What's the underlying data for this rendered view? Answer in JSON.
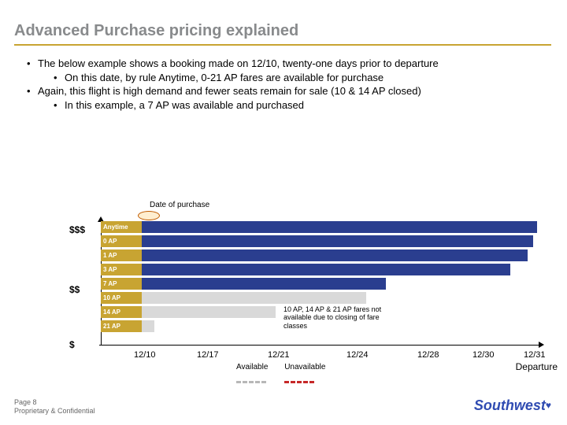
{
  "title": "Advanced Purchase pricing explained",
  "bullets": {
    "b1": "The below example shows a booking made on 12/10, twenty-one days prior to departure",
    "b2": "On this date, by rule Anytime, 0-21 AP fares are available for purchase",
    "b3": "Again, this flight is high demand and fewer seats remain for sale (10 & 14 AP closed)",
    "b4": "In this example, a 7 AP was available and purchased"
  },
  "chart": {
    "purchase_label": "Date of purchase",
    "y_labels": {
      "high": "$$$",
      "mid": "$$",
      "low": "$"
    },
    "rows": [
      {
        "label": "Anytime",
        "avail_start": 52,
        "avail_width": 502,
        "unavail_start": 0,
        "unavail_width": 0
      },
      {
        "label": "0 AP",
        "avail_start": 52,
        "avail_width": 497,
        "unavail_start": 0,
        "unavail_width": 0
      },
      {
        "label": "1 AP",
        "avail_start": 52,
        "avail_width": 490,
        "unavail_start": 0,
        "unavail_width": 0
      },
      {
        "label": "3 AP",
        "avail_start": 52,
        "avail_width": 468,
        "unavail_start": 0,
        "unavail_width": 0
      },
      {
        "label": "7 AP",
        "avail_start": 52,
        "avail_width": 310,
        "unavail_start": 0,
        "unavail_width": 0
      },
      {
        "label": "10 AP",
        "avail_start": 0,
        "avail_width": 0,
        "unavail_start": 52,
        "unavail_width": 285
      },
      {
        "label": "14 AP",
        "avail_start": 0,
        "avail_width": 0,
        "unavail_start": 52,
        "unavail_width": 170
      },
      {
        "label": "21 AP",
        "avail_start": 0,
        "avail_width": 0,
        "unavail_start": 52,
        "unavail_width": 16
      }
    ],
    "x_ticks": [
      {
        "label": "12/10",
        "pos": 100
      },
      {
        "label": "12/17",
        "pos": 180
      },
      {
        "label": "12/21",
        "pos": 270
      },
      {
        "label": "12/24",
        "pos": 370
      },
      {
        "label": "12/28",
        "pos": 460
      },
      {
        "label": "12/30",
        "pos": 530
      },
      {
        "label": "12/31",
        "pos": 595
      }
    ],
    "departure_label": "Departure",
    "callout": "10 AP, 14 AP & 21 AP fares not available due to closing of fare classes",
    "legend": {
      "available": "Available",
      "unavailable": "Unavailable"
    },
    "colors": {
      "available": "#2a3e8f",
      "unavailable": "#d9d9d9",
      "row_label_bg": "#c8a432",
      "accent": "#c8a432",
      "dash_avail": "#b7b7b7",
      "dash_unavail": "#c62828"
    }
  },
  "footer": {
    "page": "Page 8",
    "prop": "Proprietary & Confidential"
  },
  "logo": {
    "part1": "South",
    "part2": "west"
  }
}
